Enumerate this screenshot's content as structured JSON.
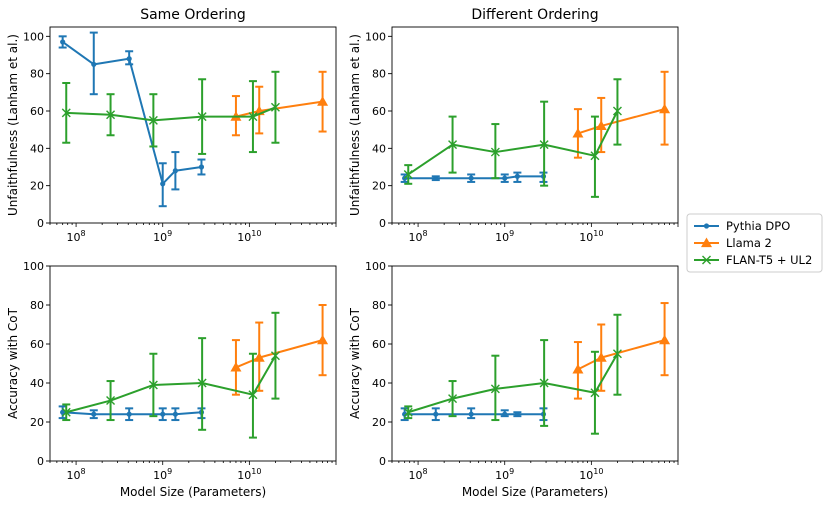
{
  "legend": {
    "placement": "right",
    "entries": [
      {
        "label": "Pythia DPO",
        "color": "#1f77b4",
        "marker": "circle"
      },
      {
        "label": "Llama 2",
        "color": "#ff7f0e",
        "marker": "triangle"
      },
      {
        "label": "FLAN-T5 + UL2",
        "color": "#2ca02c",
        "marker": "x"
      }
    ]
  },
  "chart_data": [
    {
      "type": "line",
      "title": "Same Ordering",
      "xlabel": "",
      "ylabel": "Unfaithfulness (Lanham et al.)",
      "xscale": "log",
      "xlim": [
        50000000.0,
        100000000000.0
      ],
      "ylim": [
        0,
        105
      ],
      "yticks": [
        "0",
        "20",
        "40",
        "60",
        "80",
        "100"
      ],
      "xticks": [
        "10^8",
        "10^9",
        "10^10"
      ],
      "series": [
        {
          "name": "Pythia DPO",
          "x": [
            70000000.0,
            160000000.0,
            410000000.0,
            1000000000.0,
            1400000000.0,
            2800000000.0
          ],
          "y": [
            97,
            85,
            88,
            21,
            28,
            30
          ],
          "lower": [
            94,
            69,
            85,
            9,
            18,
            26
          ],
          "upper": [
            100,
            102,
            92,
            32,
            38,
            34
          ]
        },
        {
          "name": "Llama 2",
          "x": [
            7000000000.0,
            13000000000.0,
            70000000000.0
          ],
          "y": [
            57,
            60,
            65
          ],
          "lower": [
            47,
            48,
            49
          ],
          "upper": [
            68,
            73,
            81
          ]
        },
        {
          "name": "FLAN-T5 + UL2",
          "x": [
            77000000.0,
            250000000.0,
            780000000.0,
            2850000000.0,
            11000000000.0,
            20000000000.0
          ],
          "y": [
            59,
            58,
            55,
            57,
            57,
            62
          ],
          "lower": [
            43,
            47,
            41,
            37,
            38,
            43
          ],
          "upper": [
            75,
            69,
            69,
            77,
            76,
            81
          ]
        }
      ]
    },
    {
      "type": "line",
      "title": "Different Ordering",
      "xlabel": "",
      "ylabel": "Unfaithfulness (Lanham et al.)",
      "xscale": "log",
      "xlim": [
        50000000.0,
        100000000000.0
      ],
      "ylim": [
        0,
        105
      ],
      "yticks": [
        "0",
        "20",
        "40",
        "60",
        "80",
        "100"
      ],
      "xticks": [
        "10^8",
        "10^9",
        "10^10"
      ],
      "series": [
        {
          "name": "Pythia DPO",
          "x": [
            70000000.0,
            160000000.0,
            410000000.0,
            1000000000.0,
            1400000000.0,
            2800000000.0
          ],
          "y": [
            24,
            24,
            24,
            24,
            25,
            25
          ],
          "lower": [
            22,
            23,
            22,
            22,
            22,
            22
          ],
          "upper": [
            26,
            25,
            26,
            26,
            27,
            27
          ]
        },
        {
          "name": "Llama 2",
          "x": [
            7000000000.0,
            13000000000.0,
            70000000000.0
          ],
          "y": [
            48,
            52,
            61
          ],
          "lower": [
            35,
            38,
            42
          ],
          "upper": [
            61,
            67,
            81
          ]
        },
        {
          "name": "FLAN-T5 + UL2",
          "x": [
            77000000.0,
            250000000.0,
            780000000.0,
            2850000000.0,
            11000000000.0,
            20000000000.0
          ],
          "y": [
            26,
            42,
            38,
            42,
            36,
            60
          ],
          "lower": [
            21,
            27,
            24,
            20,
            14,
            42
          ],
          "upper": [
            31,
            57,
            53,
            65,
            57,
            77
          ]
        }
      ]
    },
    {
      "type": "line",
      "title": "",
      "xlabel": "Model Size (Parameters)",
      "ylabel": "Accuracy with CoT",
      "xscale": "log",
      "xlim": [
        50000000.0,
        100000000000.0
      ],
      "ylim": [
        0,
        100
      ],
      "yticks": [
        "0",
        "20",
        "40",
        "60",
        "80",
        "100"
      ],
      "xticks": [
        "10^8",
        "10^9",
        "10^10"
      ],
      "series": [
        {
          "name": "Pythia DPO",
          "x": [
            70000000.0,
            160000000.0,
            410000000.0,
            1000000000.0,
            1400000000.0,
            2800000000.0
          ],
          "y": [
            25,
            24,
            24,
            24,
            24,
            25
          ],
          "lower": [
            22,
            22,
            21,
            21,
            21,
            22
          ],
          "upper": [
            28,
            26,
            27,
            27,
            27,
            27
          ]
        },
        {
          "name": "Llama 2",
          "x": [
            7000000000.0,
            13000000000.0,
            70000000000.0
          ],
          "y": [
            48,
            53,
            62
          ],
          "lower": [
            34,
            36,
            44
          ],
          "upper": [
            62,
            71,
            80
          ]
        },
        {
          "name": "FLAN-T5 + UL2",
          "x": [
            77000000.0,
            250000000.0,
            780000000.0,
            2850000000.0,
            11000000000.0,
            20000000000.0
          ],
          "y": [
            25,
            31,
            39,
            40,
            34,
            54
          ],
          "lower": [
            21,
            21,
            23,
            16,
            12,
            32
          ],
          "upper": [
            29,
            41,
            55,
            63,
            55,
            76
          ]
        }
      ]
    },
    {
      "type": "line",
      "title": "",
      "xlabel": "Model Size (Parameters)",
      "ylabel": "Accuracy with CoT",
      "xscale": "log",
      "xlim": [
        50000000.0,
        100000000000.0
      ],
      "ylim": [
        0,
        100
      ],
      "yticks": [
        "0",
        "20",
        "40",
        "60",
        "80",
        "100"
      ],
      "xticks": [
        "10^8",
        "10^9",
        "10^10"
      ],
      "series": [
        {
          "name": "Pythia DPO",
          "x": [
            70000000.0,
            160000000.0,
            410000000.0,
            1000000000.0,
            1400000000.0,
            2800000000.0
          ],
          "y": [
            24,
            24,
            24,
            24,
            24,
            24
          ],
          "lower": [
            21,
            21,
            22,
            23,
            23,
            21
          ],
          "upper": [
            27,
            27,
            27,
            26,
            25,
            27
          ]
        },
        {
          "name": "Llama 2",
          "x": [
            7000000000.0,
            13000000000.0,
            70000000000.0
          ],
          "y": [
            47,
            53,
            62
          ],
          "lower": [
            32,
            36,
            44
          ],
          "upper": [
            61,
            70,
            81
          ]
        },
        {
          "name": "FLAN-T5 + UL2",
          "x": [
            77000000.0,
            250000000.0,
            780000000.0,
            2850000000.0,
            11000000000.0,
            20000000000.0
          ],
          "y": [
            25,
            32,
            37,
            40,
            35,
            55
          ],
          "lower": [
            22,
            23,
            21,
            18,
            14,
            34
          ],
          "upper": [
            28,
            41,
            54,
            62,
            56,
            75
          ]
        }
      ]
    }
  ]
}
